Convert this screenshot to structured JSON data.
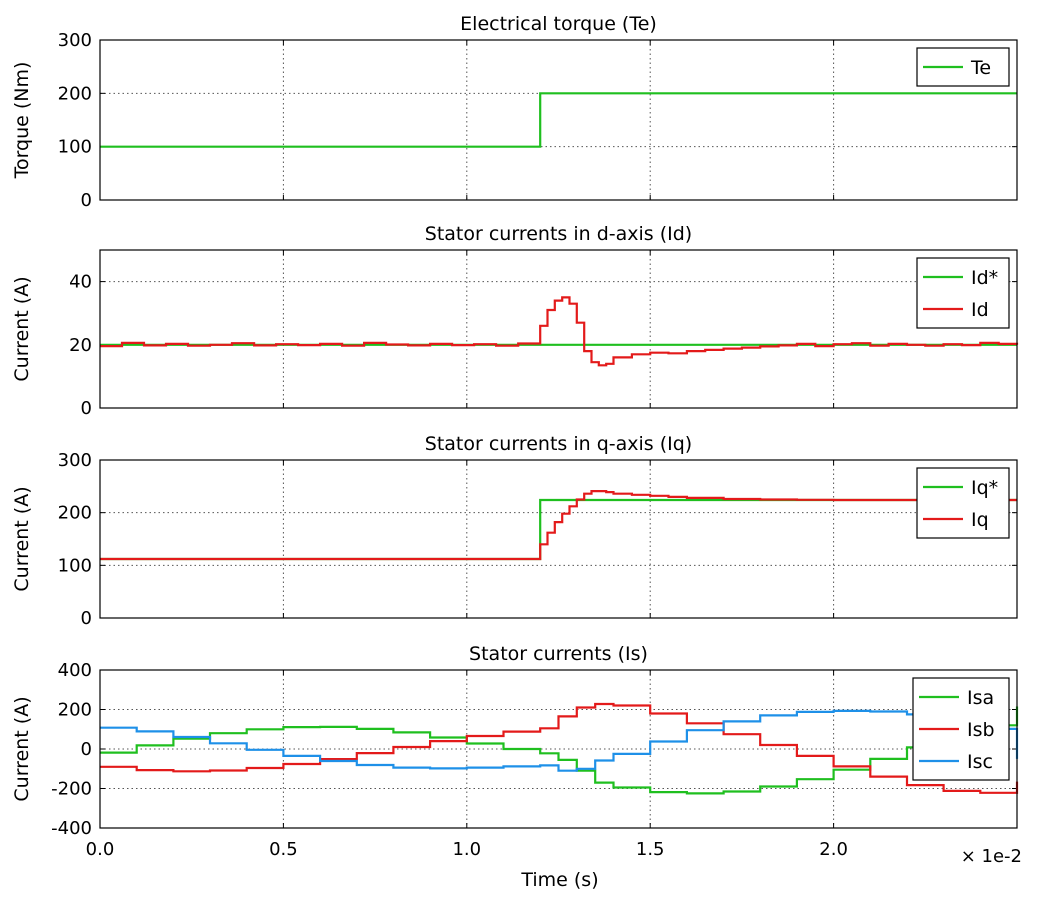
{
  "figure": {
    "xlabel": "Time (s)",
    "x_multiplier_label": "× 1e-2",
    "x_ticks": [
      "0.0",
      "0.5",
      "1.0",
      "1.5",
      "2.0"
    ]
  },
  "chart_data": [
    {
      "type": "line",
      "title": "Electrical torque (Te)",
      "ylabel": "Torque (Nm)",
      "xlim": [
        0,
        0.025
      ],
      "ylim": [
        0,
        300
      ],
      "yticks": [
        0,
        100,
        200,
        300
      ],
      "grid": true,
      "legend_position": "top-right",
      "series": [
        {
          "name": "Te",
          "color": "#1fbf1f",
          "step": true,
          "x": [
            0,
            0.012,
            0.025
          ],
          "y": [
            100,
            200,
            200
          ]
        }
      ]
    },
    {
      "type": "line",
      "title": "Stator currents in d-axis (Id)",
      "ylabel": "Current (A)",
      "xlim": [
        0,
        0.025
      ],
      "ylim": [
        0,
        50
      ],
      "yticks": [
        0,
        20,
        40
      ],
      "grid": true,
      "legend_position": "top-right",
      "series": [
        {
          "name": "Id*",
          "color": "#1fbf1f",
          "step": true,
          "x": [
            0,
            0.025
          ],
          "y": [
            20,
            20
          ]
        },
        {
          "name": "Id",
          "color": "#e31a1a",
          "step": true,
          "x": [
            0,
            0.0006,
            0.0012,
            0.0018,
            0.0024,
            0.003,
            0.0036,
            0.0042,
            0.0048,
            0.0054,
            0.006,
            0.0066,
            0.0072,
            0.0078,
            0.0084,
            0.009,
            0.0096,
            0.0102,
            0.0108,
            0.0114,
            0.012,
            0.0122,
            0.0124,
            0.0126,
            0.0128,
            0.013,
            0.0132,
            0.0134,
            0.0136,
            0.0138,
            0.014,
            0.0145,
            0.015,
            0.0155,
            0.016,
            0.0165,
            0.017,
            0.0175,
            0.018,
            0.0185,
            0.019,
            0.0195,
            0.02,
            0.0205,
            0.021,
            0.0215,
            0.022,
            0.0225,
            0.023,
            0.0235,
            0.024,
            0.0245,
            0.025
          ],
          "y": [
            19.6,
            20.6,
            19.8,
            20.3,
            19.7,
            20.0,
            20.5,
            19.8,
            20.2,
            19.9,
            20.3,
            19.7,
            20.6,
            20.1,
            19.8,
            20.3,
            19.9,
            20.2,
            19.7,
            20.4,
            26,
            31,
            34,
            35,
            33,
            27,
            18,
            14.5,
            13.5,
            14,
            16,
            17,
            17.5,
            17.3,
            18,
            18.4,
            18.8,
            19.1,
            19.5,
            19.8,
            20.3,
            19.6,
            20.2,
            20.5,
            19.7,
            20.3,
            20.0,
            19.7,
            20.2,
            19.9,
            20.6,
            20.3,
            20.0
          ]
        }
      ]
    },
    {
      "type": "line",
      "title": "Stator currents in q-axis (Iq)",
      "ylabel": "Current (A)",
      "xlim": [
        0,
        0.025
      ],
      "ylim": [
        0,
        300
      ],
      "yticks": [
        0,
        100,
        200,
        300
      ],
      "grid": true,
      "legend_position": "top-right",
      "series": [
        {
          "name": "Iq*",
          "color": "#1fbf1f",
          "step": true,
          "x": [
            0,
            0.012,
            0.025
          ],
          "y": [
            112,
            224,
            224
          ]
        },
        {
          "name": "Iq",
          "color": "#e31a1a",
          "step": true,
          "x": [
            0,
            0.012,
            0.0122,
            0.0124,
            0.0126,
            0.0128,
            0.013,
            0.0132,
            0.0134,
            0.0136,
            0.0138,
            0.014,
            0.0145,
            0.015,
            0.0155,
            0.016,
            0.017,
            0.018,
            0.019,
            0.02,
            0.021,
            0.025
          ],
          "y": [
            112,
            140,
            162,
            182,
            198,
            212,
            225,
            236,
            241,
            241,
            239,
            236,
            234,
            232,
            230,
            228,
            226,
            225,
            224.5,
            224,
            224,
            224
          ]
        }
      ]
    },
    {
      "type": "line",
      "title": "Stator currents (Is)",
      "ylabel": "Current (A)",
      "xlim": [
        0,
        0.025
      ],
      "ylim": [
        -400,
        400
      ],
      "yticks": [
        -400,
        -200,
        0,
        200,
        400
      ],
      "grid": true,
      "legend_position": "top-right",
      "series": [
        {
          "name": "Isa",
          "color": "#1fbf1f",
          "step": true,
          "x": [
            0,
            0.001,
            0.002,
            0.003,
            0.004,
            0.005,
            0.006,
            0.007,
            0.008,
            0.009,
            0.01,
            0.011,
            0.012,
            0.0125,
            0.013,
            0.0135,
            0.014,
            0.015,
            0.016,
            0.017,
            0.018,
            0.019,
            0.02,
            0.021,
            0.022,
            0.023,
            0.024,
            0.025
          ],
          "y": [
            -18,
            18,
            52,
            80,
            100,
            111,
            112,
            102,
            84,
            58,
            28,
            0,
            -22,
            -55,
            -110,
            -170,
            -195,
            -218,
            -225,
            -215,
            -190,
            -153,
            -105,
            -50,
            8,
            65,
            120,
            215
          ]
        },
        {
          "name": "Isb",
          "color": "#e31a1a",
          "step": true,
          "x": [
            0,
            0.001,
            0.002,
            0.003,
            0.004,
            0.005,
            0.006,
            0.007,
            0.008,
            0.009,
            0.01,
            0.011,
            0.012,
            0.0125,
            0.013,
            0.0135,
            0.014,
            0.015,
            0.016,
            0.017,
            0.018,
            0.019,
            0.02,
            0.021,
            0.022,
            0.023,
            0.024,
            0.025
          ],
          "y": [
            -90,
            -107,
            -113,
            -109,
            -96,
            -76,
            -51,
            -21,
            10,
            40,
            66,
            88,
            105,
            165,
            210,
            228,
            220,
            180,
            130,
            75,
            20,
            -35,
            -88,
            -140,
            -183,
            -212,
            -222,
            -165
          ]
        },
        {
          "name": "Isc",
          "color": "#1e90e8",
          "step": true,
          "x": [
            0,
            0.001,
            0.002,
            0.003,
            0.004,
            0.005,
            0.006,
            0.007,
            0.008,
            0.009,
            0.01,
            0.011,
            0.012,
            0.0125,
            0.013,
            0.0135,
            0.014,
            0.015,
            0.016,
            0.017,
            0.018,
            0.019,
            0.02,
            0.021,
            0.022,
            0.023,
            0.024,
            0.025
          ],
          "y": [
            108,
            89,
            61,
            29,
            -4,
            -35,
            -61,
            -81,
            -94,
            -98,
            -94,
            -88,
            -83,
            -110,
            -100,
            -58,
            -25,
            38,
            95,
            140,
            170,
            188,
            193,
            190,
            175,
            147,
            102,
            -50
          ]
        }
      ]
    }
  ]
}
